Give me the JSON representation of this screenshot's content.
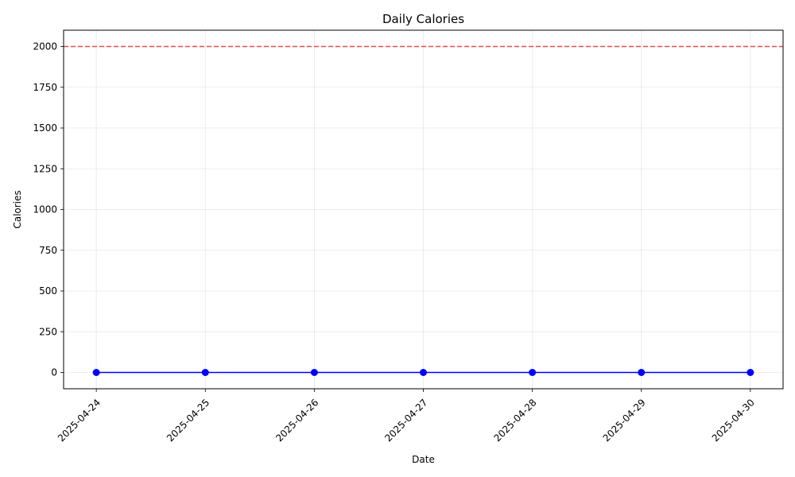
{
  "chart_data": {
    "type": "line",
    "title": "Daily Calories",
    "xlabel": "Date",
    "ylabel": "Calories",
    "x": [
      "2025-04-24",
      "2025-04-25",
      "2025-04-26",
      "2025-04-27",
      "2025-04-28",
      "2025-04-29",
      "2025-04-30"
    ],
    "series": [
      {
        "values": [
          0,
          0,
          0,
          0,
          0,
          0,
          0
        ],
        "color": "#0000ff",
        "marker": "circle"
      }
    ],
    "reference_line": {
      "y": 2000,
      "color": "#e03030",
      "style": "dashed"
    },
    "yticks": [
      0,
      250,
      500,
      750,
      1000,
      1250,
      1500,
      1750,
      2000
    ],
    "ylim": [
      -100,
      2100
    ],
    "grid": true,
    "xtick_rotation": 45
  }
}
